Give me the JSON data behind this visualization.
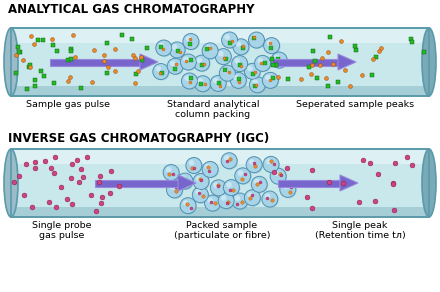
{
  "title1": "ANALYTICAL GAS CHROMATOGRAPHY",
  "title2": "INVERSE GAS CHROMATOGRAPHY (IGC)",
  "label1a": "Sample gas pulse",
  "label1b": "Standard analytical\ncolumn packing",
  "label1c": "Seperated sample peaks",
  "label2a": "Single probe\ngas pulse",
  "label2b": "Packed sample\n(particulate or fibre)",
  "label2c": "Single peak\n(Retention time tᴫ)",
  "tube_fill": "#c8e8ec",
  "tube_fill2": "#b8dce4",
  "tube_edge": "#5a9aaa",
  "tube_highlight": "#e0f2f5",
  "tube_shadow": "#90bec8",
  "ball_color": "#a8d4e8",
  "ball_edge": "#5090b0",
  "ball_highlight": "#d8eef8",
  "arrow_fill": "#7766cc",
  "arrow_edge": "#9988dd",
  "dot_green": "#22bb22",
  "dot_green_edge": "#115511",
  "dot_orange": "#ee8822",
  "dot_orange_edge": "#884411",
  "dot_pink": "#cc4488",
  "dot_pink_edge": "#881133",
  "background": "#ffffff",
  "title_fontsize": 8.5,
  "label_fontsize": 6.8
}
